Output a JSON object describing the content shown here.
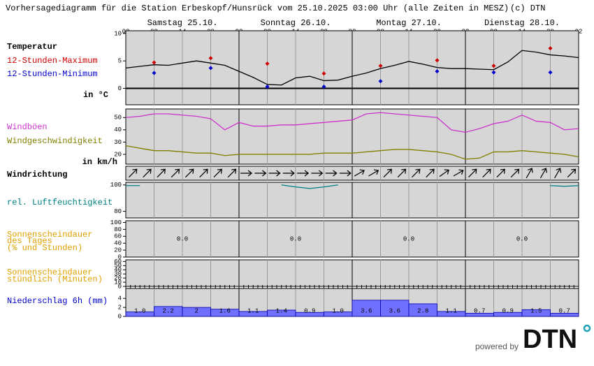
{
  "header": {
    "title": "Vorhersagediagramm für die Station Erbeskopf/Hunsrück vom 25.10.2025 03:00 Uhr (alle Zeiten in MESZ)",
    "copyright": "(c) DTN",
    "powered": "powered by",
    "logo": "DTN"
  },
  "time_axis": {
    "days": [
      "Samstag 25.10.",
      "Sonntag 26.10.",
      "Montag 27.10.",
      "Dienstag 28.10."
    ],
    "hour_labels": [
      "02",
      "08",
      "14",
      "20",
      "02",
      "08",
      "14",
      "20",
      "02",
      "08",
      "14",
      "20",
      "02",
      "08",
      "14",
      "20",
      "02"
    ]
  },
  "chart_data": [
    {
      "type": "line",
      "title": "Temperatur",
      "y_label": "in °C",
      "ylim": [
        -3,
        10.5
      ],
      "yticks": [
        10,
        5,
        0
      ],
      "series": [
        {
          "color": "#000000",
          "values": [
            3.7,
            4.0,
            4.3,
            4.2,
            4.6,
            5.0,
            4.6,
            4.2,
            3.1,
            2.0,
            0.7,
            0.6,
            1.9,
            2.2,
            1.4,
            1.5,
            2.2,
            2.8,
            3.6,
            4.2,
            4.9,
            4.4,
            3.8,
            3.6,
            3.6,
            3.5,
            3.4,
            4.8,
            6.9,
            6.6,
            6.1,
            5.9,
            5.6
          ]
        },
        {
          "name": "12-Stunden-Maximum",
          "color": "#cc0000",
          "marker": "diamond",
          "values": [
            4.7,
            5.5,
            4.5,
            2.7,
            4.1,
            5.1,
            4.1,
            7.3
          ]
        },
        {
          "name": "12-Stunden-Minimum",
          "color": "#0000cc",
          "marker": "diamond",
          "values": [
            2.8,
            3.7,
            0.3,
            0.3,
            1.3,
            3.1,
            2.9,
            2.9
          ]
        }
      ]
    },
    {
      "type": "line",
      "y_label": "in km/h",
      "ylim": [
        12,
        57
      ],
      "yticks": [
        50,
        40,
        30,
        20
      ],
      "series": [
        {
          "name": "Windböen",
          "color": "#cc33cc",
          "values": [
            50,
            51,
            53,
            53,
            52,
            51,
            49,
            40,
            46,
            43,
            43,
            44,
            44,
            45,
            46,
            47,
            48,
            53,
            54,
            53,
            52,
            51,
            50,
            40,
            38,
            41,
            45,
            47,
            52,
            47,
            46,
            40,
            41
          ]
        },
        {
          "name": "Windgeschwindigkeit",
          "color": "#808000",
          "values": [
            27,
            25,
            23,
            23,
            22,
            21,
            21,
            19,
            20,
            20,
            20,
            20,
            20,
            20,
            21,
            21,
            21,
            22,
            23,
            24,
            24,
            23,
            22,
            20,
            16,
            17,
            22,
            22,
            23,
            22,
            21,
            20,
            18
          ]
        }
      ]
    },
    {
      "type": "arrows",
      "title": "Windrichtung",
      "values": [
        225,
        225,
        225,
        225,
        225,
        225,
        225,
        225,
        270,
        270,
        270,
        270,
        270,
        270,
        270,
        270,
        240,
        240,
        225,
        225,
        225,
        225,
        235,
        240,
        225,
        225,
        225,
        225,
        210,
        210,
        210,
        225
      ]
    },
    {
      "type": "line",
      "ylim": [
        75,
        102
      ],
      "yticks": [
        100,
        80
      ],
      "series": [
        {
          "name": "rel. Luftfeuchtigkeit",
          "color": "#008080",
          "values": [
            99.5,
            99.5,
            null,
            null,
            null,
            null,
            null,
            null,
            null,
            null,
            null,
            100,
            98.5,
            97.3,
            98.5,
            100,
            null,
            null,
            null,
            null,
            null,
            null,
            null,
            null,
            null,
            null,
            null,
            null,
            null,
            null,
            99.5,
            99,
            99.5
          ]
        }
      ]
    },
    {
      "type": "bar",
      "title_lines": [
        "Sonnenscheindauer",
        "des Tages",
        "(% und Stunden)"
      ],
      "color": "#e0a000",
      "ylim": [
        0,
        105
      ],
      "yticks": [
        100,
        80,
        60,
        40,
        20,
        0
      ],
      "values": [
        0,
        0,
        0,
        0
      ],
      "value_labels": [
        "0.0",
        "0.0",
        "0.0",
        "0.0"
      ]
    },
    {
      "type": "axis",
      "title_lines": [
        "Sonnenscheindauer",
        "stündlich (Minuten)"
      ],
      "ylim": [
        0,
        64
      ],
      "yticks": [
        60,
        50,
        40,
        30,
        20,
        10,
        0
      ]
    },
    {
      "type": "bar",
      "title": "Niederschlag 6h (mm)",
      "color": "#7070ff",
      "ylim": [
        0,
        6.2
      ],
      "yticks": [
        4,
        2,
        0
      ],
      "values": [
        1.0,
        2.2,
        2,
        1.6,
        1.1,
        1.4,
        0.9,
        1.0,
        3.6,
        3.6,
        2.8,
        1.1,
        0.7,
        0.9,
        1.5,
        0.7
      ],
      "value_labels": [
        "1.0",
        "2.2",
        "2",
        "1.6",
        "1.1",
        "1.4",
        "0.9",
        "1.0",
        "3.6",
        "3.6",
        "2.8",
        "1.1",
        "0.7",
        "0.9",
        "1.5",
        "0.7"
      ]
    }
  ]
}
